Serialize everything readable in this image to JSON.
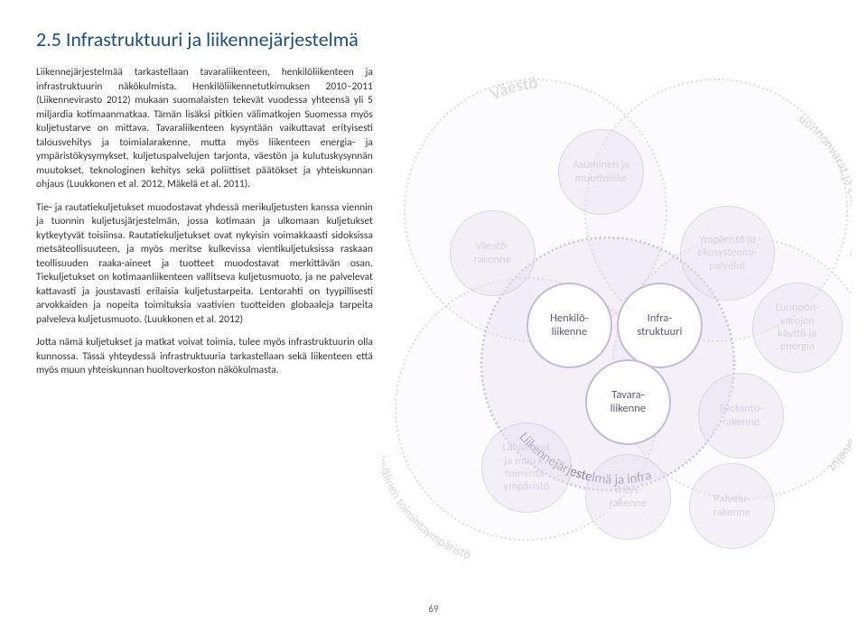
{
  "heading": "2.5 Infrastruktuuri ja liikennejärjestelmä",
  "para1": "Liikennejärjestelmää tarkastellaan tavaraliikenteen, henkilöliikenteen ja infrastruktuurin näkökulmista. Henkilöliikennetutkimuksen 2010–2011 (Liikennevirasto 2012) mukaan suomalaisten tekevät vuodessa yhteensä yli 5 miljardia kotimaanmatkaa. Tämän lisäksi pitkien välimatkojen Suomessa myös kuljetustarve on mittava. Tavaraliikenteen kysyntään vaikuttavat erityisesti talousvehitys ja toimialarakenne, mutta myös liikenteen energia- ja ympäristökysymykset, kuljetuspalvelujen tarjonta, väestön ja kulutuskysynnän muutokset, teknologinen kehitys sekä poliittiset päätökset ja yhteiskunnan ohjaus (Luukkonen et al. 2012, Mäkelä et al. 2011).",
  "para2": "Tie- ja rautatiekuljetukset muodostavat yhdessä merikuljetusten kanssa viennin ja tuonnin kuljetusjärjestelmän, jossa kotimaan ja ulkomaan kuljetukset kytkeytyvät toisiinsa. Rautatiekuljetukset ovat nykyisin voimakkaasti sidoksissa metsäteollisuuteen, ja myös meritse kulkevissa vientikuljetuksissa raskaan teollisuuden raaka-aineet ja tuotteet muodostavat merkittävän osan. Tiekuljetukset on kotimaanliikenteen vallitseva kuljetusmuoto, ja ne palvelevat kattavasti ja joustavasti erilaisia kuljetustarpeita. Lentorahti on tyypillisesti arvokkaiden ja nopeita toimituksia vaativien tuotteiden globaaleja tarpeita palveleva kuljetusmuoto. (Luukkonen et al. 2012)",
  "para3": "Jotta nämä kuljetukset ja matkat voivat toimia, tulee myös infrastruktuurin olla kunnossa. Tässä yhteydessä infrastruktuuria tarkastellaan sekä liikenteen että myös muun yhteiskunnan huoltoverkoston näkökulmasta.",
  "pageNumber": "69",
  "diagram": {
    "outerArcs": {
      "topLeft": "Väestö",
      "topRight": "Luonnonvarat ja ekosysteemit",
      "bottomRight": "Tuotanto ja palvelut",
      "bottomMid": "Liikennejärjestelmä ja infra",
      "bottomLeft": "Kansainvälinen toimintaympäristö"
    },
    "fadedOuter": {
      "vaestorakenne": "Väestö-\nrakenne",
      "asuminen": "Asuminen ja\nmuuttoliike",
      "ymparisto": "Ympäristö ja\nekosysteemi-\npalvelut",
      "luonnonvarat": "Luonnon-\nvarojen\nkäyttö ja\nenergia",
      "tuotanto": "Tuotanto-\nrakenne",
      "palvelu": "Palvelu-\nrakenne",
      "yritys": "Yritys-\nrakenne",
      "lahialueet": "Lähialueet\nja muu kv\ntoiminta-\nympäristö"
    },
    "focus": {
      "henkilo": "Henkilö-\nliikenne",
      "infra": "Infra-\nstruktuuri",
      "tavara": "Tavara-\nliikenne"
    },
    "colors": {
      "border": "#d0d0d0",
      "focusBorder": "#b5a6cc",
      "focusBg": "#ffffff",
      "fadedBg": "rgba(232,226,242,0.45)",
      "textFocus": "#5a5a7a",
      "textFaded": "#d6cee0",
      "arcText": "#d0d0d0"
    }
  }
}
